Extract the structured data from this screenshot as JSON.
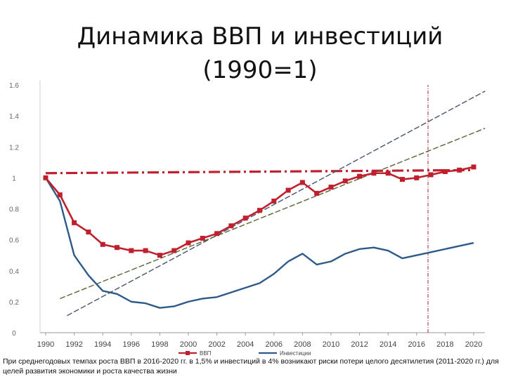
{
  "chart_data": {
    "type": "line",
    "title": "Динамика ВВП и инвестиций (1990=1)",
    "x": [
      1990,
      1991,
      1992,
      1993,
      1994,
      1995,
      1996,
      1997,
      1998,
      1999,
      2000,
      2001,
      2002,
      2003,
      2004,
      2005,
      2006,
      2007,
      2008,
      2009,
      2010,
      2011,
      2012,
      2013,
      2014,
      2015,
      2016,
      2017,
      2018,
      2019,
      2020
    ],
    "x_ticks": [
      1990,
      1992,
      1994,
      1996,
      1998,
      2000,
      2002,
      2004,
      2006,
      2008,
      2010,
      2012,
      2014,
      2016,
      2018,
      2020
    ],
    "xlim": [
      1990,
      2020
    ],
    "ylim": [
      0,
      1.6
    ],
    "y_ticks": [
      {
        "value": 0,
        "label": "0"
      },
      {
        "value": 0.2,
        "label": "0.2"
      },
      {
        "value": 0.4,
        "label": "0.4"
      },
      {
        "value": 0.6,
        "label": "0.6"
      },
      {
        "value": 0.8,
        "label": "0.8"
      },
      {
        "value": 1,
        "label": "1"
      },
      {
        "value": 1.2,
        "label": "1.2"
      },
      {
        "value": 1.4,
        "label": "1.4"
      },
      {
        "value": 1.6,
        "label": "1.6"
      }
    ],
    "grid": false,
    "legend_position": "bottom-center",
    "series": [
      {
        "name": "ВВП",
        "color": "#c0202e",
        "marker": "square",
        "values": [
          1.0,
          0.89,
          0.71,
          0.65,
          0.57,
          0.55,
          0.53,
          0.53,
          0.5,
          0.53,
          0.58,
          0.61,
          0.64,
          0.69,
          0.74,
          0.79,
          0.85,
          0.92,
          0.97,
          0.9,
          0.94,
          0.98,
          1.01,
          1.03,
          1.03,
          0.99,
          1.0,
          1.02,
          1.04,
          1.05,
          1.07
        ]
      },
      {
        "name": "Инвестиции",
        "color": "#2e5a8a",
        "marker": "none",
        "values": [
          1.0,
          0.85,
          0.5,
          0.37,
          0.27,
          0.25,
          0.2,
          0.19,
          0.16,
          0.17,
          0.2,
          0.22,
          0.23,
          0.26,
          0.29,
          0.32,
          0.38,
          0.46,
          0.51,
          0.44,
          0.46,
          0.51,
          0.54,
          0.55,
          0.53,
          0.48,
          0.5,
          0.52,
          0.54,
          0.56,
          0.58
        ]
      }
    ],
    "reference_lines": [
      {
        "name": "gdp-1990-level-line",
        "color": "#c0202e",
        "points": [
          [
            1990,
            1.03
          ],
          [
            2020,
            1.05
          ]
        ]
      },
      {
        "name": "investment-trend-line",
        "color": "#4a5468",
        "points": [
          [
            1991.5,
            0.11
          ],
          [
            2020.8,
            1.56
          ]
        ]
      },
      {
        "name": "gdp-trend-line",
        "color": "#5c6234",
        "points": [
          [
            1991,
            0.22
          ],
          [
            2020.8,
            1.32
          ]
        ]
      },
      {
        "name": "year-2016-marker-line",
        "color": "#a8243a",
        "points": [
          [
            2016.8,
            0
          ],
          [
            2016.8,
            1.6
          ]
        ]
      }
    ]
  },
  "caption": "При среднегодовых темпах роста ВВП в 2016-2020 гг. в 1,5% и инвестиций в 4% возникают риски потери целого десятилетия (2011-2020 гг.) для целей развития экономики и роста качества жизни"
}
